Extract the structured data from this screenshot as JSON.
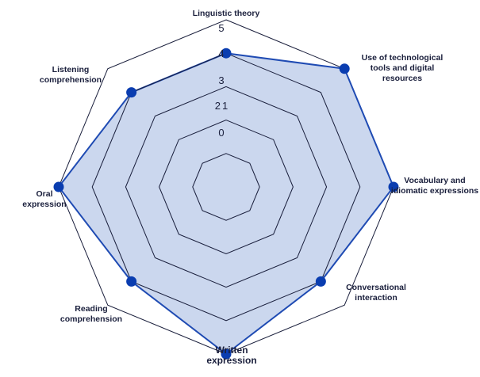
{
  "chart_data": {
    "type": "radar",
    "title": "",
    "axes": [
      [
        "Linguistic theory"
      ],
      [
        "Use of technological",
        "tools and digital",
        "resources"
      ],
      [
        "Vocabulary and",
        "idiomatic expressions"
      ],
      [
        "Conversational",
        "interaction"
      ],
      [
        "Written",
        "expression"
      ],
      [
        "Reading",
        "comprehension"
      ],
      [
        "Oral",
        "expression"
      ],
      [
        "Listening",
        "comprehension"
      ]
    ],
    "values": [
      4,
      5,
      5,
      4,
      5,
      4,
      5,
      4
    ],
    "rlim": [
      0,
      5
    ],
    "ticks": [
      "0",
      "1",
      "2",
      "3",
      "4",
      "5"
    ],
    "grid_levels": [
      1,
      2,
      3,
      4,
      5
    ],
    "fill_color": "#c5d3ec",
    "line_color": "#1f4bb3",
    "marker_color": "#0a3db0",
    "grid_color": "#1a1f3c"
  }
}
